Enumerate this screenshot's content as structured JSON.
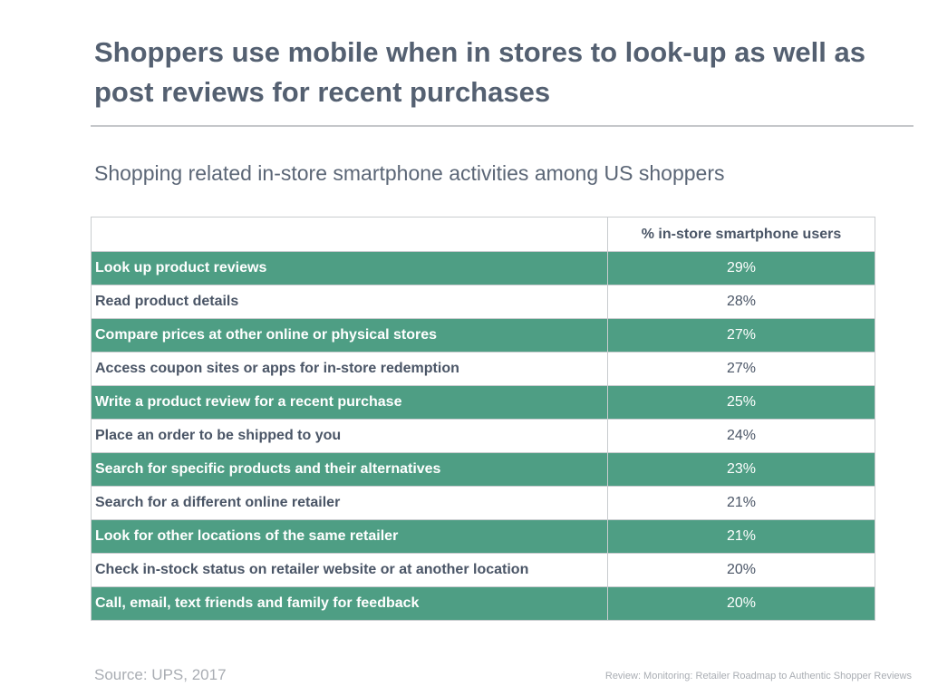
{
  "title": "Shoppers use mobile when in stores to look-up as well as post reviews for recent purchases",
  "subtitle": "Shopping related in-store smartphone activities among US shoppers",
  "source": "Source: UPS, 2017",
  "footer_reference": "Review: Monitoring: Retailer Roadmap to Authentic Shopper Reviews",
  "colors": {
    "row_highlight": "#4e9e84",
    "text": "#4a5566",
    "rule": "#c5c7ca"
  },
  "chart_data": {
    "type": "table",
    "columns": [
      "",
      "% in-store smartphone users"
    ],
    "rows": [
      {
        "activity": "Look up product reviews",
        "value": "29%"
      },
      {
        "activity": "Read product details",
        "value": "28%"
      },
      {
        "activity": "Compare prices at other online or physical stores",
        "value": "27%"
      },
      {
        "activity": "Access coupon sites or apps for in-store redemption",
        "value": "27%"
      },
      {
        "activity": "Write a product review for a recent purchase",
        "value": "25%"
      },
      {
        "activity": "Place an order to be shipped to you",
        "value": "24%"
      },
      {
        "activity": "Search for specific products and their alternatives",
        "value": "23%"
      },
      {
        "activity": "Search for a different online retailer",
        "value": "21%"
      },
      {
        "activity": "Look for other locations of the same retailer",
        "value": "21%"
      },
      {
        "activity": "Check in-stock status on retailer website or at another location",
        "value": "20%"
      },
      {
        "activity": "Call, email, text friends and family for feedback",
        "value": "20%"
      }
    ]
  }
}
